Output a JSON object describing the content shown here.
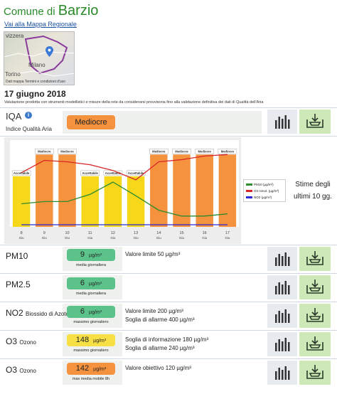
{
  "header": {
    "prefix": "Comune di",
    "name": "Barzio",
    "map_link": "Vai alla Mappa Regionale"
  },
  "map": {
    "label_top": "vizzera",
    "label_city": "Milano",
    "label_city2": "Torino",
    "footer": "Dati mappa  Termini e condizioni d'uso"
  },
  "date": "17 giugno 2018",
  "note": "Valutazione prodotta con strumenti modellistici e misure della rete da considerarsi provvisoria fino alla validazione definitiva dei dati di Qualità dell'Aria",
  "iqa": {
    "label": "IQA",
    "info": "i",
    "sublabel": "Indice Qualità Aria",
    "value": "Mediocre",
    "color": "#f5923e"
  },
  "chart_data": {
    "type": "bar",
    "categories": [
      "8",
      "9",
      "10",
      "11",
      "12",
      "13",
      "14",
      "15",
      "16",
      "17"
    ],
    "month": "Giu",
    "series": [
      {
        "name": "IQA",
        "values": [
          2,
          3,
          3,
          2,
          2,
          2,
          3,
          3,
          3,
          3
        ]
      },
      {
        "name": "PM10 (µg/m³)",
        "values": [
          32,
          35,
          35,
          45,
          62,
          43,
          23,
          15,
          15,
          18
        ]
      },
      {
        "name": "O3 minut. (µg/m³)",
        "values": [
          75,
          92,
          90,
          86,
          78,
          65,
          90,
          93,
          98,
          100
        ]
      },
      {
        "name": "NO2 (µg/m³)",
        "values": [
          3,
          3,
          3,
          3,
          3,
          3,
          3,
          3,
          3,
          3
        ]
      }
    ],
    "bar_labels": [
      "Accettabile",
      "Mediocre",
      "Mediocre",
      "Accettabile",
      "Accettabile",
      "Accettabile",
      "Mediocre",
      "Mediocre",
      "Mediocre",
      "Mediocre"
    ],
    "colors": {
      "accettabile": "#f6d71a",
      "mediocre": "#f5923e",
      "pm10": "#2e8b2e",
      "o3": "#d92626",
      "no2": "#2a2ad6"
    },
    "ylim": [
      0,
      120
    ],
    "grid": false,
    "legend": "right"
  },
  "legend": {
    "pm10": "PM10 (µg/m³)",
    "o3": "O3 minut. (µg/m³)",
    "no2": "NO2 (µg/m³)"
  },
  "stime": "Stime degli ultimi 10 gg.",
  "rows": [
    {
      "name": "PM10",
      "sub": "",
      "value": "9",
      "unit": "µg/m³",
      "value_label": "media giornaliera",
      "color": "#5bc28a",
      "thresholds": [
        "Valore limite 50 µg/m³"
      ]
    },
    {
      "name": "PM2.5",
      "sub": "",
      "value": "6",
      "unit": "µg/m³",
      "value_label": "media giornaliera",
      "color": "#5bc28a",
      "thresholds": []
    },
    {
      "name": "NO2",
      "sub": "Biossido di Azoto",
      "value": "6",
      "unit": "µg/m³",
      "value_label": "massimo giornaliero",
      "color": "#5bc28a",
      "thresholds": [
        "Valore limite 200 µg/m³",
        "Soglia di allarme 400 µg/m³"
      ]
    },
    {
      "name": "O3",
      "sub": "Ozono",
      "value": "148",
      "unit": "µg/m³",
      "value_label": "massimo giornaliero",
      "color": "#f6e046",
      "thresholds": [
        "Soglia di informazione 180 µg/m³",
        "Soglia di allarme 240 µg/m³"
      ]
    },
    {
      "name": "O3",
      "sub": "Ozono",
      "value": "142",
      "unit": "µg/m³",
      "value_label": "max media mobile 8h",
      "color": "#f5923e",
      "thresholds": [
        "Valore obiettivo 120 µg/m³"
      ]
    }
  ]
}
